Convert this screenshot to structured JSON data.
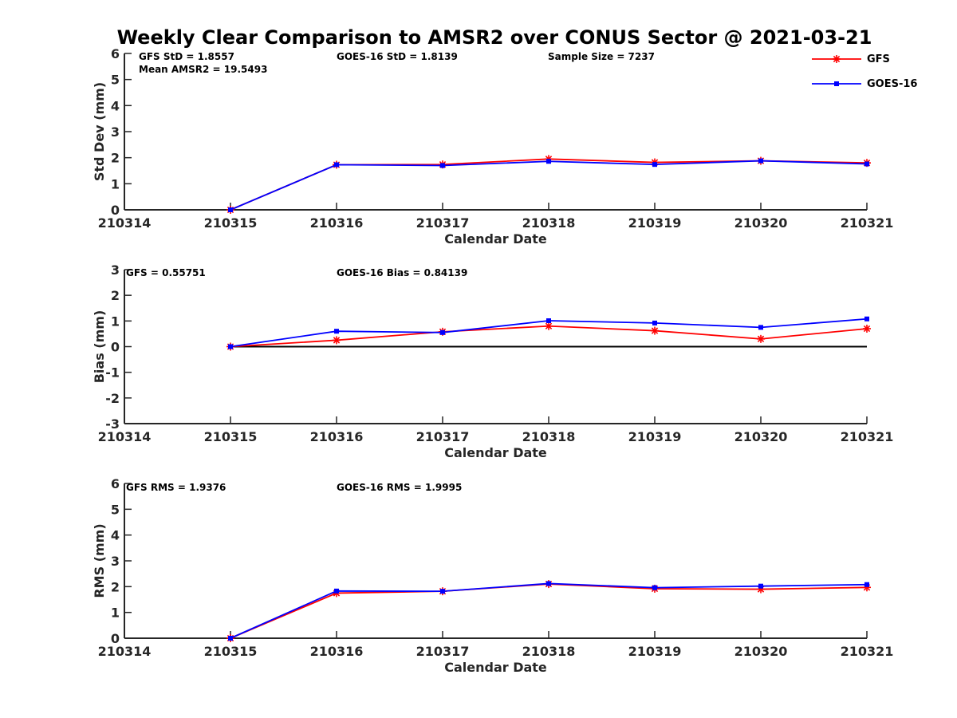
{
  "title": "Weekly Clear Comparison to AMSR2 over CONUS Sector @ 2021-03-21",
  "colors": {
    "gfs": "#ff0000",
    "goes": "#0000ff",
    "zero_line": "#000000",
    "axis": "#262626"
  },
  "legend": {
    "placement": "top-right",
    "items": [
      {
        "label": "GFS",
        "marker": "asterisk",
        "color": "#ff0000"
      },
      {
        "label": "GOES-16",
        "marker": "square",
        "color": "#0000ff"
      }
    ]
  },
  "chart_data": [
    {
      "type": "line",
      "x": [
        "210314",
        "210315",
        "210316",
        "210317",
        "210318",
        "210319",
        "210320",
        "210321"
      ],
      "xlabel": "Calendar Date",
      "ylabel": "Std Dev (mm)",
      "ylim": [
        0,
        6
      ],
      "yticks": [
        0,
        1,
        2,
        3,
        4,
        5,
        6
      ],
      "grid": false,
      "annotations": [
        "GFS StD = 1.8557",
        "Mean AMSR2 = 19.5493",
        "GOES-16 StD = 1.8139",
        "Sample Size = 7237"
      ],
      "series": [
        {
          "name": "GFS",
          "values": [
            null,
            0,
            1.73,
            1.74,
            1.95,
            1.82,
            1.88,
            1.8
          ]
        },
        {
          "name": "GOES-16",
          "values": [
            null,
            0,
            1.73,
            1.7,
            1.86,
            1.74,
            1.88,
            1.76
          ]
        }
      ]
    },
    {
      "type": "line",
      "x": [
        "210314",
        "210315",
        "210316",
        "210317",
        "210318",
        "210319",
        "210320",
        "210321"
      ],
      "xlabel": "Calendar Date",
      "ylabel": "Bias (mm)",
      "ylim": [
        -3,
        3
      ],
      "yticks": [
        -3,
        -2,
        -1,
        0,
        1,
        2,
        3
      ],
      "grid": false,
      "reference_line": 0,
      "annotations": [
        "GFS = 0.55751",
        "GOES-16 Bias  = 0.84139"
      ],
      "series": [
        {
          "name": "GFS",
          "values": [
            null,
            0,
            0.25,
            0.58,
            0.8,
            0.62,
            0.3,
            0.7
          ]
        },
        {
          "name": "GOES-16",
          "values": [
            null,
            0,
            0.6,
            0.55,
            1.01,
            0.92,
            0.75,
            1.08
          ]
        }
      ]
    },
    {
      "type": "line",
      "x": [
        "210314",
        "210315",
        "210316",
        "210317",
        "210318",
        "210319",
        "210320",
        "210321"
      ],
      "xlabel": "Calendar Date",
      "ylabel": "RMS (mm)",
      "ylim": [
        0,
        6
      ],
      "yticks": [
        0,
        1,
        2,
        3,
        4,
        5,
        6
      ],
      "grid": false,
      "annotations": [
        "GFS RMS = 1.9376",
        "GOES-16 RMS = 1.9995"
      ],
      "series": [
        {
          "name": "GFS",
          "values": [
            null,
            0,
            1.75,
            1.82,
            2.1,
            1.92,
            1.9,
            1.97
          ]
        },
        {
          "name": "GOES-16",
          "values": [
            null,
            0,
            1.83,
            1.82,
            2.12,
            1.96,
            2.02,
            2.08
          ]
        }
      ]
    }
  ]
}
